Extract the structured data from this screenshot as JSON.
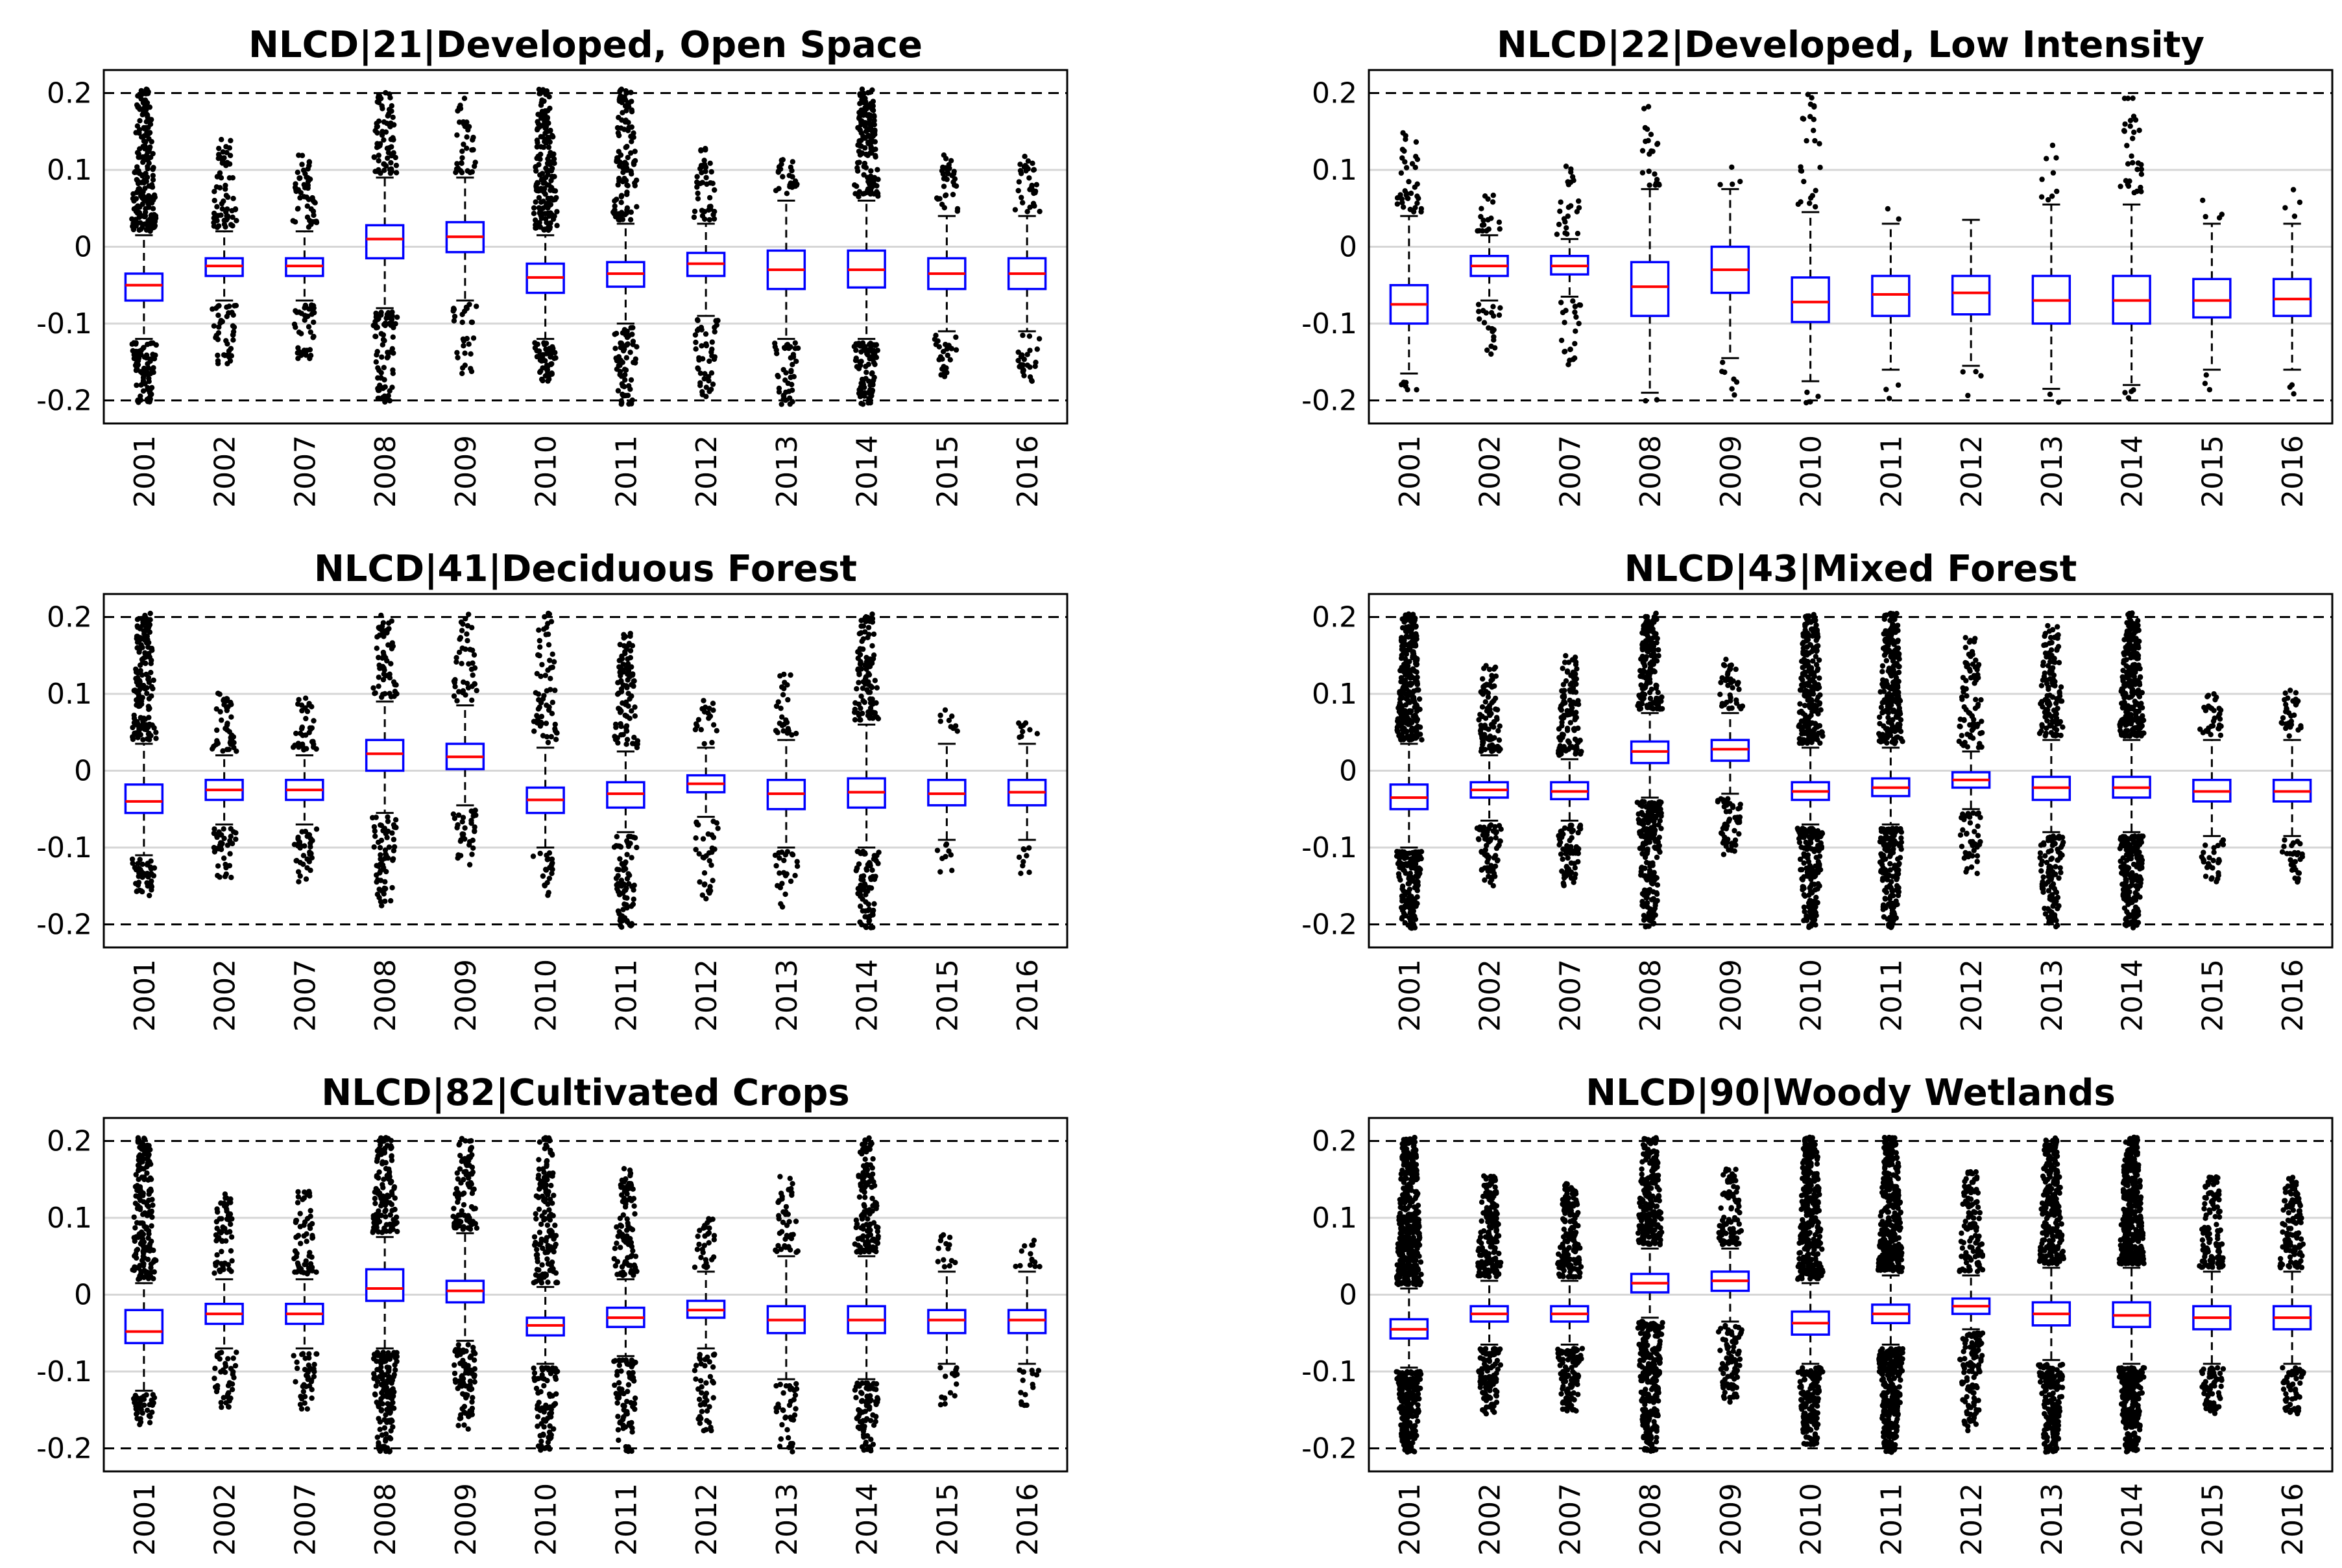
{
  "chart_data": [
    {
      "type": "boxplot",
      "title": "NLCD|21|Developed, Open Space",
      "categories": [
        "2001",
        "2002",
        "2007",
        "2008",
        "2009",
        "2010",
        "2011",
        "2012",
        "2013",
        "2014",
        "2015",
        "2016"
      ],
      "ylim": [
        -0.23,
        0.23
      ],
      "yticks": [
        -0.2,
        -0.1,
        0,
        0.1,
        0.2
      ],
      "ytick_labels": [
        "-0.2",
        "-0.1",
        "0",
        "0.1",
        "0.2"
      ],
      "reference_lines": [
        -0.2,
        0.2
      ],
      "median": [
        -0.05,
        -0.025,
        -0.025,
        0.01,
        0.013,
        -0.04,
        -0.035,
        -0.022,
        -0.03,
        -0.03,
        -0.035,
        -0.035
      ],
      "q1": [
        -0.07,
        -0.038,
        -0.038,
        -0.015,
        -0.007,
        -0.06,
        -0.052,
        -0.038,
        -0.055,
        -0.053,
        -0.055,
        -0.055
      ],
      "q3": [
        -0.035,
        -0.015,
        -0.015,
        0.028,
        0.032,
        -0.022,
        -0.02,
        -0.008,
        -0.005,
        -0.005,
        -0.015,
        -0.015
      ],
      "whisker_low": [
        -0.12,
        -0.07,
        -0.07,
        -0.08,
        -0.07,
        -0.12,
        -0.1,
        -0.09,
        -0.12,
        -0.12,
        -0.11,
        -0.11
      ],
      "whisker_high": [
        0.015,
        0.02,
        0.02,
        0.09,
        0.09,
        0.015,
        0.03,
        0.03,
        0.06,
        0.06,
        0.04,
        0.04
      ],
      "outlier_low_extent": [
        -0.2,
        -0.15,
        -0.145,
        -0.2,
        -0.16,
        -0.17,
        -0.2,
        -0.195,
        -0.2,
        -0.2,
        -0.17,
        -0.17
      ],
      "outlier_high_extent": [
        0.2,
        0.135,
        0.115,
        0.2,
        0.2,
        0.2,
        0.2,
        0.125,
        0.11,
        0.2,
        0.115,
        0.115
      ],
      "outlier_density": [
        1.0,
        0.5,
        0.5,
        0.6,
        0.3,
        0.9,
        0.6,
        0.4,
        0.5,
        1.0,
        0.4,
        0.4
      ]
    },
    {
      "type": "boxplot",
      "title": "NLCD|22|Developed, Low Intensity",
      "categories": [
        "2001",
        "2002",
        "2007",
        "2008",
        "2009",
        "2010",
        "2011",
        "2012",
        "2013",
        "2014",
        "2015",
        "2016"
      ],
      "ylim": [
        -0.23,
        0.23
      ],
      "yticks": [
        -0.2,
        -0.1,
        0,
        0.1,
        0.2
      ],
      "ytick_labels": [
        "-0.2",
        "-0.1",
        "0",
        "0.1",
        "0.2"
      ],
      "reference_lines": [
        -0.2,
        0.2
      ],
      "median": [
        -0.075,
        -0.025,
        -0.025,
        -0.052,
        -0.03,
        -0.072,
        -0.062,
        -0.06,
        -0.07,
        -0.07,
        -0.07,
        -0.068
      ],
      "q1": [
        -0.1,
        -0.038,
        -0.036,
        -0.09,
        -0.06,
        -0.098,
        -0.09,
        -0.088,
        -0.1,
        -0.1,
        -0.092,
        -0.09
      ],
      "q3": [
        -0.05,
        -0.012,
        -0.012,
        -0.02,
        0.0,
        -0.04,
        -0.038,
        -0.038,
        -0.038,
        -0.038,
        -0.042,
        -0.042
      ],
      "whisker_low": [
        -0.165,
        -0.07,
        -0.065,
        -0.19,
        -0.145,
        -0.175,
        -0.16,
        -0.155,
        -0.185,
        -0.18,
        -0.16,
        -0.16
      ],
      "whisker_high": [
        0.04,
        0.015,
        0.01,
        0.075,
        0.075,
        0.045,
        0.03,
        0.035,
        0.055,
        0.055,
        0.03,
        0.03
      ],
      "outlier_low_extent": [
        -0.185,
        -0.135,
        -0.15,
        -0.2,
        -0.19,
        -0.2,
        -0.2,
        -0.2,
        -0.2,
        -0.2,
        -0.19,
        -0.19
      ],
      "outlier_high_extent": [
        0.155,
        0.07,
        0.1,
        0.18,
        0.1,
        0.2,
        0.05,
        0.04,
        0.135,
        0.2,
        0.075,
        0.075
      ],
      "outlier_density": [
        0.3,
        0.3,
        0.25,
        0.2,
        0.15,
        0.15,
        0.08,
        0.08,
        0.1,
        0.2,
        0.08,
        0.08
      ]
    },
    {
      "type": "boxplot",
      "title": "NLCD|41|Deciduous Forest",
      "categories": [
        "2001",
        "2002",
        "2007",
        "2008",
        "2009",
        "2010",
        "2011",
        "2012",
        "2013",
        "2014",
        "2015",
        "2016"
      ],
      "ylim": [
        -0.23,
        0.23
      ],
      "yticks": [
        -0.2,
        -0.1,
        0,
        0.1,
        0.2
      ],
      "ytick_labels": [
        "-0.2",
        "-0.1",
        "0",
        "0.1",
        "0.2"
      ],
      "reference_lines": [
        -0.2,
        0.2
      ],
      "median": [
        -0.04,
        -0.025,
        -0.025,
        0.022,
        0.018,
        -0.038,
        -0.03,
        -0.017,
        -0.03,
        -0.028,
        -0.03,
        -0.028
      ],
      "q1": [
        -0.055,
        -0.038,
        -0.038,
        0.0,
        0.002,
        -0.055,
        -0.048,
        -0.028,
        -0.05,
        -0.048,
        -0.045,
        -0.045
      ],
      "q3": [
        -0.018,
        -0.012,
        -0.012,
        0.04,
        0.035,
        -0.022,
        -0.015,
        -0.006,
        -0.012,
        -0.01,
        -0.012,
        -0.012
      ],
      "whisker_low": [
        -0.11,
        -0.07,
        -0.07,
        -0.055,
        -0.045,
        -0.1,
        -0.08,
        -0.06,
        -0.1,
        -0.1,
        -0.09,
        -0.09
      ],
      "whisker_high": [
        0.035,
        0.02,
        0.02,
        0.09,
        0.085,
        0.03,
        0.025,
        0.03,
        0.04,
        0.06,
        0.035,
        0.035
      ],
      "outlier_low_extent": [
        -0.16,
        -0.14,
        -0.14,
        -0.175,
        -0.135,
        -0.16,
        -0.2,
        -0.165,
        -0.175,
        -0.2,
        -0.13,
        -0.13
      ],
      "outlier_high_extent": [
        0.2,
        0.1,
        0.09,
        0.2,
        0.2,
        0.2,
        0.175,
        0.09,
        0.125,
        0.2,
        0.075,
        0.075
      ],
      "outlier_density": [
        0.9,
        0.5,
        0.5,
        0.5,
        0.35,
        0.35,
        0.6,
        0.3,
        0.3,
        0.7,
        0.2,
        0.2
      ]
    },
    {
      "type": "boxplot",
      "title": "NLCD|43|Mixed Forest",
      "categories": [
        "2001",
        "2002",
        "2007",
        "2008",
        "2009",
        "2010",
        "2011",
        "2012",
        "2013",
        "2014",
        "2015",
        "2016"
      ],
      "ylim": [
        -0.23,
        0.23
      ],
      "yticks": [
        -0.2,
        -0.1,
        0,
        0.1,
        0.2
      ],
      "ytick_labels": [
        "-0.2",
        "-0.1",
        "0",
        "0.1",
        "0.2"
      ],
      "reference_lines": [
        -0.2,
        0.2
      ],
      "median": [
        -0.035,
        -0.025,
        -0.027,
        0.025,
        0.028,
        -0.027,
        -0.022,
        -0.012,
        -0.022,
        -0.022,
        -0.027,
        -0.027
      ],
      "q1": [
        -0.05,
        -0.035,
        -0.037,
        0.01,
        0.013,
        -0.038,
        -0.033,
        -0.022,
        -0.038,
        -0.035,
        -0.04,
        -0.04
      ],
      "q3": [
        -0.018,
        -0.015,
        -0.015,
        0.038,
        0.04,
        -0.015,
        -0.01,
        -0.002,
        -0.008,
        -0.008,
        -0.012,
        -0.012
      ],
      "whisker_low": [
        -0.1,
        -0.065,
        -0.065,
        -0.035,
        -0.03,
        -0.07,
        -0.07,
        -0.05,
        -0.08,
        -0.08,
        -0.085,
        -0.085
      ],
      "whisker_high": [
        0.035,
        0.02,
        0.015,
        0.075,
        0.075,
        0.03,
        0.03,
        0.025,
        0.04,
        0.04,
        0.04,
        0.04
      ],
      "outlier_low_extent": [
        -0.2,
        -0.145,
        -0.145,
        -0.2,
        -0.11,
        -0.2,
        -0.2,
        -0.13,
        -0.2,
        -0.2,
        -0.14,
        -0.14
      ],
      "outlier_high_extent": [
        0.2,
        0.135,
        0.145,
        0.2,
        0.14,
        0.2,
        0.2,
        0.17,
        0.185,
        0.2,
        0.1,
        0.1
      ],
      "outlier_density": [
        1.5,
        0.8,
        0.8,
        1.2,
        0.6,
        1.2,
        1.2,
        0.5,
        0.8,
        1.5,
        0.5,
        0.5
      ]
    },
    {
      "type": "boxplot",
      "title": "NLCD|82|Cultivated Crops",
      "categories": [
        "2001",
        "2002",
        "2007",
        "2008",
        "2009",
        "2010",
        "2011",
        "2012",
        "2013",
        "2014",
        "2015",
        "2016"
      ],
      "ylim": [
        -0.23,
        0.23
      ],
      "yticks": [
        -0.2,
        -0.1,
        0,
        0.1,
        0.2
      ],
      "ytick_labels": [
        "-0.2",
        "-0.1",
        "0",
        "0.1",
        "0.2"
      ],
      "reference_lines": [
        -0.2,
        0.2
      ],
      "median": [
        -0.048,
        -0.025,
        -0.025,
        0.008,
        0.005,
        -0.04,
        -0.03,
        -0.02,
        -0.033,
        -0.033,
        -0.033,
        -0.033
      ],
      "q1": [
        -0.063,
        -0.038,
        -0.038,
        -0.008,
        -0.01,
        -0.053,
        -0.042,
        -0.03,
        -0.05,
        -0.05,
        -0.05,
        -0.05
      ],
      "q3": [
        -0.02,
        -0.012,
        -0.012,
        0.033,
        0.018,
        -0.03,
        -0.017,
        -0.008,
        -0.015,
        -0.015,
        -0.02,
        -0.02
      ],
      "whisker_low": [
        -0.125,
        -0.07,
        -0.07,
        -0.07,
        -0.06,
        -0.09,
        -0.08,
        -0.07,
        -0.11,
        -0.11,
        -0.09,
        -0.09
      ],
      "whisker_high": [
        0.015,
        0.02,
        0.02,
        0.075,
        0.08,
        0.01,
        0.02,
        0.03,
        0.05,
        0.05,
        0.03,
        0.03
      ],
      "outlier_low_extent": [
        -0.165,
        -0.145,
        -0.145,
        -0.2,
        -0.17,
        -0.2,
        -0.2,
        -0.175,
        -0.2,
        -0.2,
        -0.14,
        -0.14
      ],
      "outlier_high_extent": [
        0.2,
        0.13,
        0.13,
        0.2,
        0.2,
        0.2,
        0.16,
        0.1,
        0.15,
        0.2,
        0.075,
        0.075
      ],
      "outlier_density": [
        0.9,
        0.5,
        0.5,
        1.0,
        0.7,
        0.7,
        0.6,
        0.4,
        0.4,
        0.8,
        0.3,
        0.3
      ]
    },
    {
      "type": "boxplot",
      "title": "NLCD|90|Woody Wetlands",
      "categories": [
        "2001",
        "2002",
        "2007",
        "2008",
        "2009",
        "2010",
        "2011",
        "2012",
        "2013",
        "2014",
        "2015",
        "2016"
      ],
      "ylim": [
        -0.23,
        0.23
      ],
      "yticks": [
        -0.2,
        -0.1,
        0,
        0.1,
        0.2
      ],
      "ytick_labels": [
        "-0.2",
        "-0.1",
        "0",
        "0.1",
        "0.2"
      ],
      "reference_lines": [
        -0.2,
        0.2
      ],
      "median": [
        -0.045,
        -0.025,
        -0.025,
        0.015,
        0.018,
        -0.037,
        -0.025,
        -0.015,
        -0.025,
        -0.027,
        -0.03,
        -0.03
      ],
      "q1": [
        -0.057,
        -0.035,
        -0.035,
        0.003,
        0.005,
        -0.052,
        -0.037,
        -0.025,
        -0.04,
        -0.042,
        -0.045,
        -0.045
      ],
      "q3": [
        -0.032,
        -0.015,
        -0.015,
        0.027,
        0.03,
        -0.022,
        -0.013,
        -0.005,
        -0.01,
        -0.01,
        -0.015,
        -0.015
      ],
      "whisker_low": [
        -0.095,
        -0.065,
        -0.065,
        -0.03,
        -0.035,
        -0.09,
        -0.065,
        -0.045,
        -0.085,
        -0.09,
        -0.09,
        -0.09
      ],
      "whisker_high": [
        0.008,
        0.018,
        0.018,
        0.06,
        0.06,
        0.015,
        0.025,
        0.025,
        0.035,
        0.035,
        0.03,
        0.03
      ],
      "outlier_low_extent": [
        -0.2,
        -0.15,
        -0.15,
        -0.2,
        -0.135,
        -0.19,
        -0.2,
        -0.175,
        -0.2,
        -0.2,
        -0.15,
        -0.15
      ],
      "outlier_high_extent": [
        0.2,
        0.15,
        0.14,
        0.2,
        0.16,
        0.2,
        0.2,
        0.155,
        0.2,
        0.2,
        0.15,
        0.15
      ],
      "outlier_density": [
        2.0,
        1.2,
        1.2,
        1.5,
        0.8,
        1.6,
        1.8,
        0.8,
        1.4,
        2.0,
        0.9,
        0.9
      ]
    }
  ]
}
